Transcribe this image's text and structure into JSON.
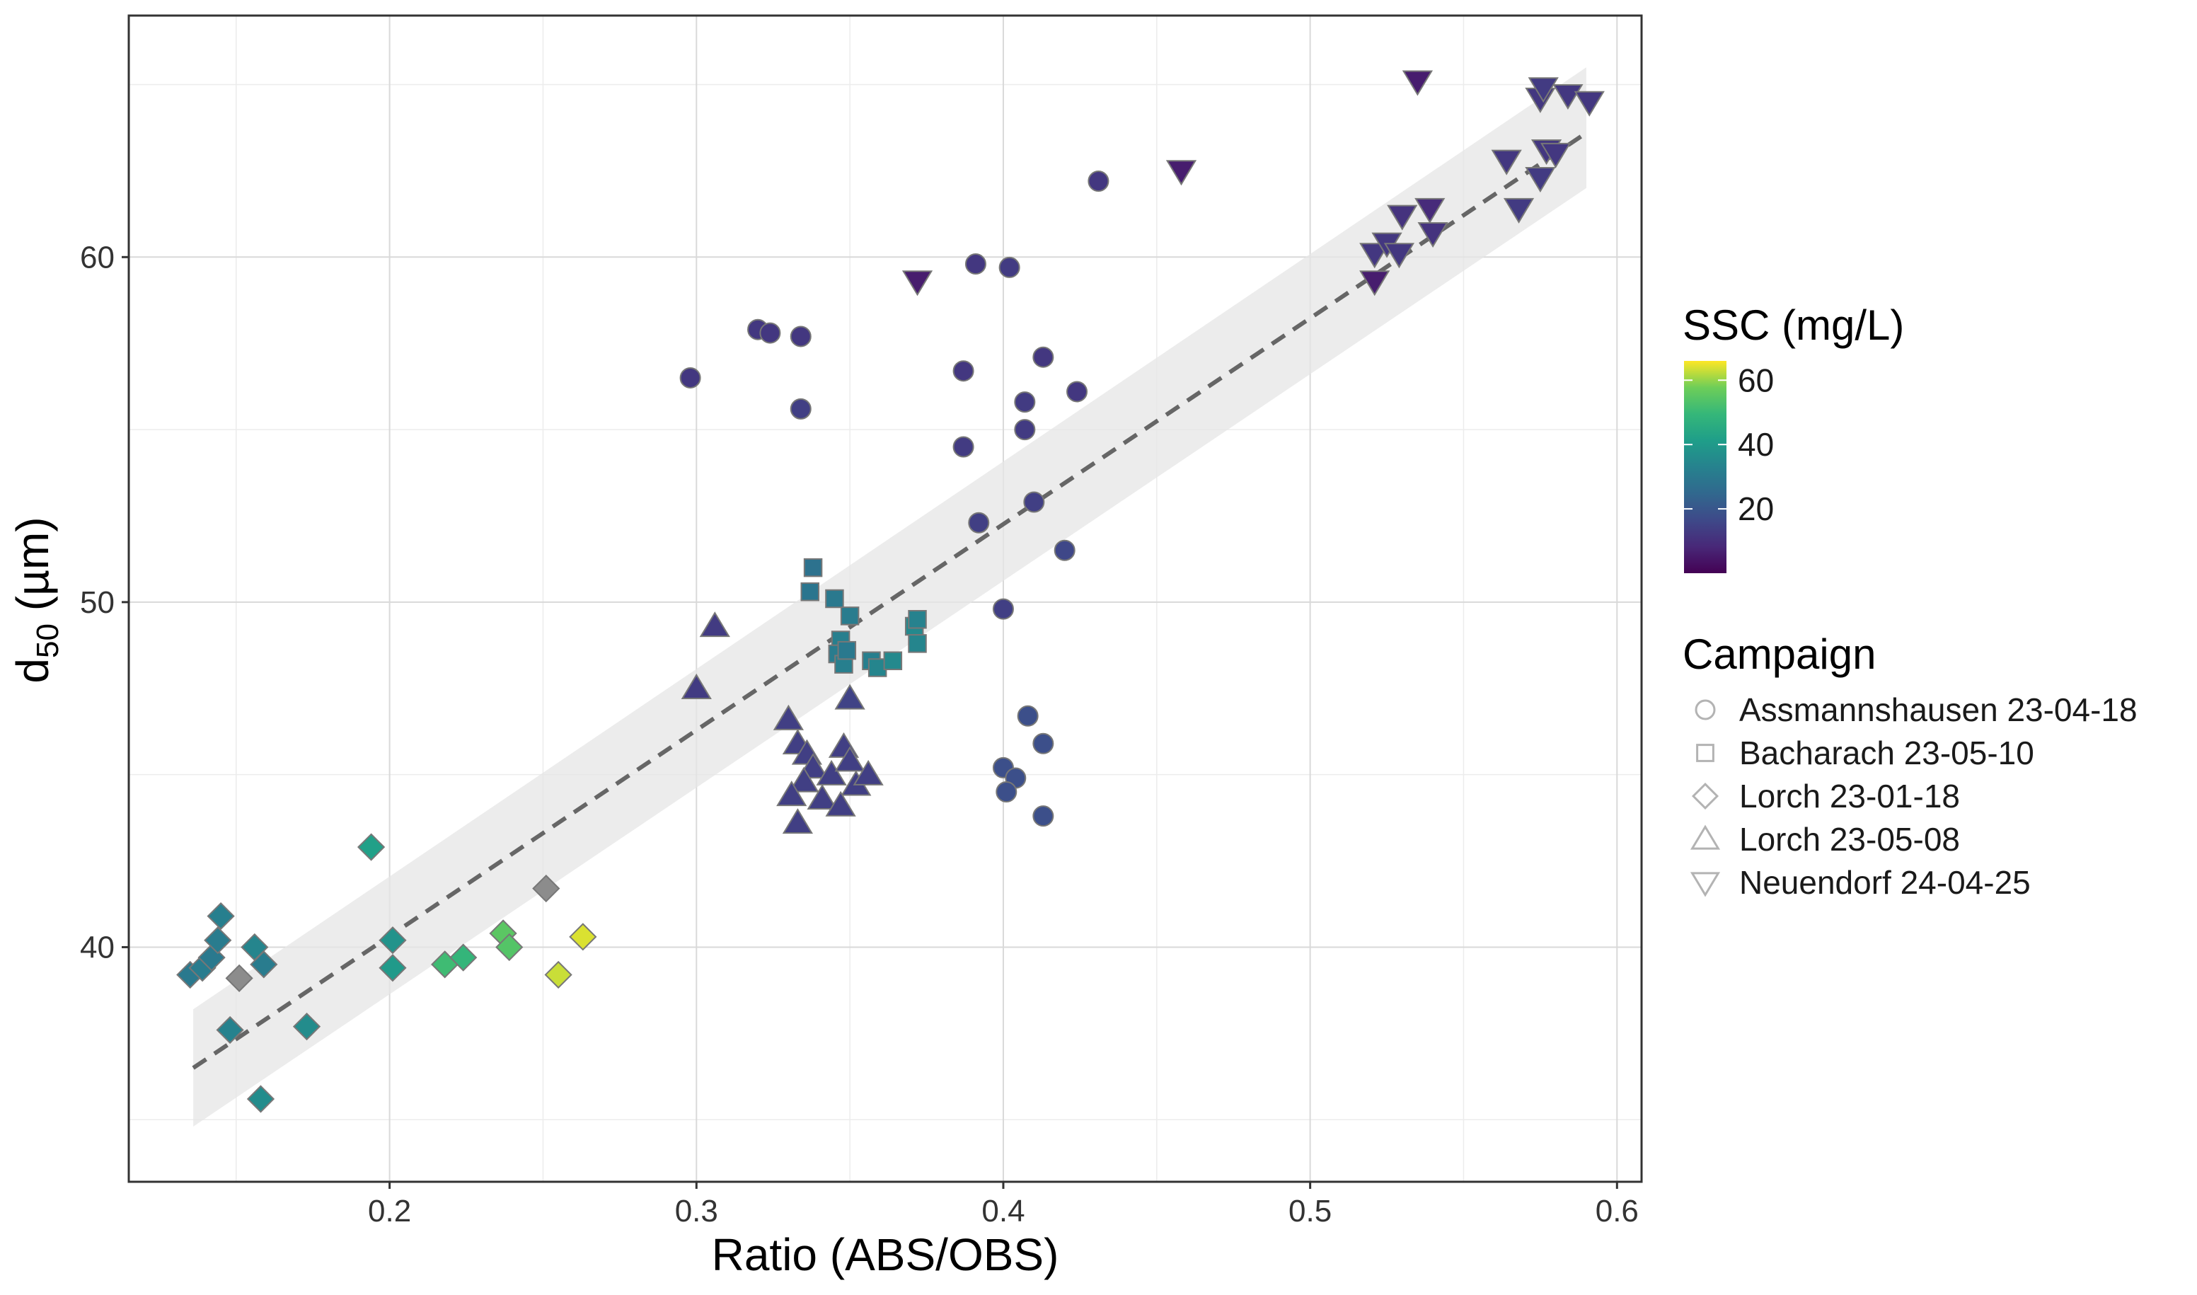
{
  "chart_data": {
    "type": "scatter",
    "title": "",
    "xlabel": "Ratio (ABS/OBS)",
    "ylabel_main": "d",
    "ylabel_sub": "50",
    "ylabel_unit": " (µm)",
    "xlim": [
      0.115,
      0.608
    ],
    "ylim": [
      33.2,
      67.0
    ],
    "x_ticks": [
      0.2,
      0.3,
      0.4,
      0.5,
      0.6
    ],
    "x_tick_labels": [
      "0.2",
      "0.3",
      "0.4",
      "0.5",
      "0.6"
    ],
    "y_ticks": [
      40,
      50,
      60
    ],
    "y_tick_labels": [
      "40",
      "50",
      "60"
    ],
    "x_minor_ticks": [
      0.15,
      0.25,
      0.35,
      0.45,
      0.55
    ],
    "y_minor_ticks": [
      35,
      45,
      55,
      65
    ],
    "grid": true,
    "color_scale": {
      "title": "SSC (mg/L)",
      "colormap": "viridis",
      "min": 0,
      "max": 66,
      "ticks": [
        20,
        40,
        60
      ],
      "tick_labels": [
        "20",
        "40",
        "60"
      ],
      "na_color": "#8c8c8c"
    },
    "shape_legend": {
      "title": "Campaign",
      "entries": [
        {
          "label": "Assmannshausen 23-04-18",
          "shape": "circle"
        },
        {
          "label": "Bacharach 23-05-10",
          "shape": "square"
        },
        {
          "label": "Lorch 23-01-18",
          "shape": "diamond"
        },
        {
          "label": "Lorch 23-05-08",
          "shape": "triangle-up"
        },
        {
          "label": "Neuendorf 24-04-25",
          "shape": "triangle-down"
        }
      ]
    },
    "trend_line": {
      "style": "dashed",
      "x_start": 0.136,
      "y_start": 36.5,
      "x_end": 0.59,
      "y_end": 63.6,
      "ci_lower_start": 34.8,
      "ci_upper_start": 38.2,
      "ci_lower_end": 62.0,
      "ci_upper_end": 65.5,
      "color": "#666666",
      "band_color": "#e6e6e6"
    },
    "series": [
      {
        "name": "Assmannshausen 23-04-18",
        "shape": "circle",
        "points": [
          [
            0.298,
            56.5,
            12
          ],
          [
            0.32,
            57.9,
            12
          ],
          [
            0.324,
            57.8,
            12
          ],
          [
            0.334,
            57.7,
            12
          ],
          [
            0.334,
            55.6,
            14
          ],
          [
            0.387,
            56.7,
            12
          ],
          [
            0.387,
            54.5,
            13
          ],
          [
            0.391,
            59.8,
            12
          ],
          [
            0.402,
            59.7,
            13
          ],
          [
            0.407,
            55.8,
            13
          ],
          [
            0.407,
            55.0,
            13
          ],
          [
            0.41,
            52.9,
            14
          ],
          [
            0.413,
            57.1,
            12
          ],
          [
            0.424,
            56.1,
            12
          ],
          [
            0.431,
            62.2,
            12
          ],
          [
            0.392,
            52.3,
            14
          ],
          [
            0.4,
            49.8,
            14
          ],
          [
            0.42,
            51.5,
            16
          ],
          [
            0.408,
            46.7,
            18
          ],
          [
            0.413,
            45.9,
            18
          ],
          [
            0.4,
            45.2,
            18
          ],
          [
            0.404,
            44.9,
            18
          ],
          [
            0.401,
            44.5,
            18
          ],
          [
            0.413,
            43.8,
            18
          ]
        ]
      },
      {
        "name": "Bacharach 23-05-10",
        "shape": "square",
        "points": [
          [
            0.338,
            51.0,
            28
          ],
          [
            0.337,
            50.3,
            29
          ],
          [
            0.345,
            50.1,
            30
          ],
          [
            0.35,
            49.6,
            31
          ],
          [
            0.347,
            48.9,
            32
          ],
          [
            0.346,
            48.5,
            31
          ],
          [
            0.348,
            48.2,
            32
          ],
          [
            0.357,
            48.3,
            32
          ],
          [
            0.359,
            48.1,
            34
          ],
          [
            0.364,
            48.3,
            35
          ],
          [
            0.371,
            49.3,
            35
          ],
          [
            0.372,
            49.5,
            33
          ],
          [
            0.372,
            48.8,
            34
          ],
          [
            0.349,
            48.6,
            30
          ]
        ]
      },
      {
        "name": "Lorch 23-01-18",
        "shape": "diamond",
        "points": [
          [
            0.135,
            39.2,
            30
          ],
          [
            0.139,
            39.4,
            31
          ],
          [
            0.142,
            39.7,
            30
          ],
          [
            0.144,
            40.2,
            31
          ],
          [
            0.145,
            40.9,
            32
          ],
          [
            0.148,
            37.6,
            33
          ],
          [
            0.151,
            39.1,
            null
          ],
          [
            0.156,
            40.0,
            34
          ],
          [
            0.159,
            39.5,
            31
          ],
          [
            0.158,
            35.6,
            36
          ],
          [
            0.173,
            37.7,
            36
          ],
          [
            0.194,
            42.9,
            42
          ],
          [
            0.201,
            40.2,
            38
          ],
          [
            0.201,
            39.4,
            40
          ],
          [
            0.218,
            39.5,
            51
          ],
          [
            0.224,
            39.7,
            49
          ],
          [
            0.237,
            40.4,
            55
          ],
          [
            0.239,
            40.0,
            54
          ],
          [
            0.251,
            41.7,
            null
          ],
          [
            0.255,
            39.2,
            63
          ],
          [
            0.263,
            40.3,
            64
          ]
        ]
      },
      {
        "name": "Lorch 23-05-08",
        "shape": "triangle-up",
        "points": [
          [
            0.3,
            47.5,
            13
          ],
          [
            0.306,
            49.3,
            13
          ],
          [
            0.33,
            46.6,
            14
          ],
          [
            0.333,
            45.9,
            14
          ],
          [
            0.336,
            45.6,
            14
          ],
          [
            0.338,
            45.2,
            14
          ],
          [
            0.344,
            45.0,
            14
          ],
          [
            0.348,
            45.8,
            14
          ],
          [
            0.35,
            45.4,
            14
          ],
          [
            0.35,
            47.2,
            15
          ],
          [
            0.352,
            44.7,
            14
          ],
          [
            0.356,
            45.0,
            14
          ],
          [
            0.335,
            44.8,
            14
          ],
          [
            0.331,
            44.4,
            14
          ],
          [
            0.341,
            44.3,
            14
          ],
          [
            0.347,
            44.1,
            14
          ],
          [
            0.333,
            43.6,
            14
          ]
        ]
      },
      {
        "name": "Neuendorf 24-04-25",
        "shape": "triangle-down",
        "points": [
          [
            0.372,
            59.3,
            6
          ],
          [
            0.458,
            62.5,
            6
          ],
          [
            0.521,
            59.3,
            6
          ],
          [
            0.521,
            60.1,
            12
          ],
          [
            0.525,
            60.4,
            12
          ],
          [
            0.529,
            60.1,
            12
          ],
          [
            0.53,
            61.2,
            11
          ],
          [
            0.535,
            65.1,
            6
          ],
          [
            0.539,
            61.4,
            9
          ],
          [
            0.54,
            60.7,
            11
          ],
          [
            0.564,
            62.8,
            12
          ],
          [
            0.568,
            61.4,
            13
          ],
          [
            0.575,
            62.3,
            13
          ],
          [
            0.577,
            63.1,
            12
          ],
          [
            0.58,
            63.0,
            12
          ],
          [
            0.575,
            64.6,
            12
          ],
          [
            0.576,
            64.9,
            13
          ],
          [
            0.584,
            64.7,
            12
          ],
          [
            0.591,
            64.5,
            12
          ]
        ]
      }
    ]
  }
}
